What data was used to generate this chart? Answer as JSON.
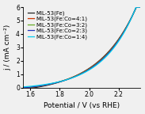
{
  "title": "",
  "xlabel": "Potential / V (vs RHE)",
  "ylabel": "j / (mA cm⁻²)",
  "xlim": [
    1.55,
    2.35
  ],
  "ylim": [
    0,
    6
  ],
  "xticks": [
    1.6,
    1.8,
    2.0,
    2.2
  ],
  "yticks": [
    0,
    1,
    2,
    3,
    4,
    5,
    6
  ],
  "series": [
    {
      "label": "MIL-53(Fe)",
      "color": "#222222",
      "x0": 1.78,
      "scale": 5.5,
      "steepness": 8.0,
      "exp_k": 3.8
    },
    {
      "label": "MIL-53(Fe:Co=4:1)",
      "color": "#cc3300",
      "x0": 1.74,
      "scale": 5.5,
      "steepness": 9.0,
      "exp_k": 4.0
    },
    {
      "label": "MIL-53(Fe:Co=3:2)",
      "color": "#66aa22",
      "x0": 1.73,
      "scale": 5.5,
      "steepness": 9.2,
      "exp_k": 4.1
    },
    {
      "label": "MIL-53(Fe:Co=2:3)",
      "color": "#2233bb",
      "x0": 1.72,
      "scale": 5.5,
      "steepness": 9.5,
      "exp_k": 4.2
    },
    {
      "label": "MIL-53(Fe:Co=1:4)",
      "color": "#00ccee",
      "x0": 1.63,
      "scale": 5.5,
      "steepness": 10.5,
      "exp_k": 4.5
    }
  ],
  "bg_color": "#f0f0f0",
  "fontsize": 6.5,
  "legend_fontsize": 5.0,
  "linewidth": 0.9
}
